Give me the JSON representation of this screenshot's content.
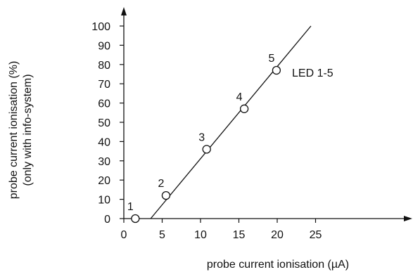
{
  "chart_data": {
    "type": "scatter",
    "title": "",
    "xlabel": "probe current ionisation (µA)",
    "ylabel_lines": [
      "probe current ionisation (%)",
      "(only with info-system)"
    ],
    "xlim": [
      0,
      25
    ],
    "ylim": [
      0,
      100
    ],
    "x_ticks": [
      0,
      5,
      10,
      15,
      20,
      25
    ],
    "y_ticks": [
      0,
      10,
      20,
      30,
      40,
      50,
      60,
      70,
      80,
      90,
      100
    ],
    "grid": false,
    "series": [
      {
        "name": "LED 1-5",
        "points": [
          {
            "label": "1",
            "x": 1.5,
            "y": 0
          },
          {
            "label": "2",
            "x": 5.5,
            "y": 12
          },
          {
            "label": "3",
            "x": 10.8,
            "y": 36
          },
          {
            "label": "4",
            "x": 15.7,
            "y": 57
          },
          {
            "label": "5",
            "x": 19.9,
            "y": 77
          }
        ],
        "trend_line": {
          "x": [
            3.5,
            24.4
          ],
          "y": [
            0,
            100
          ]
        }
      }
    ],
    "colors": {
      "ink": "#111111",
      "marker_fill": "#ffffff"
    }
  }
}
